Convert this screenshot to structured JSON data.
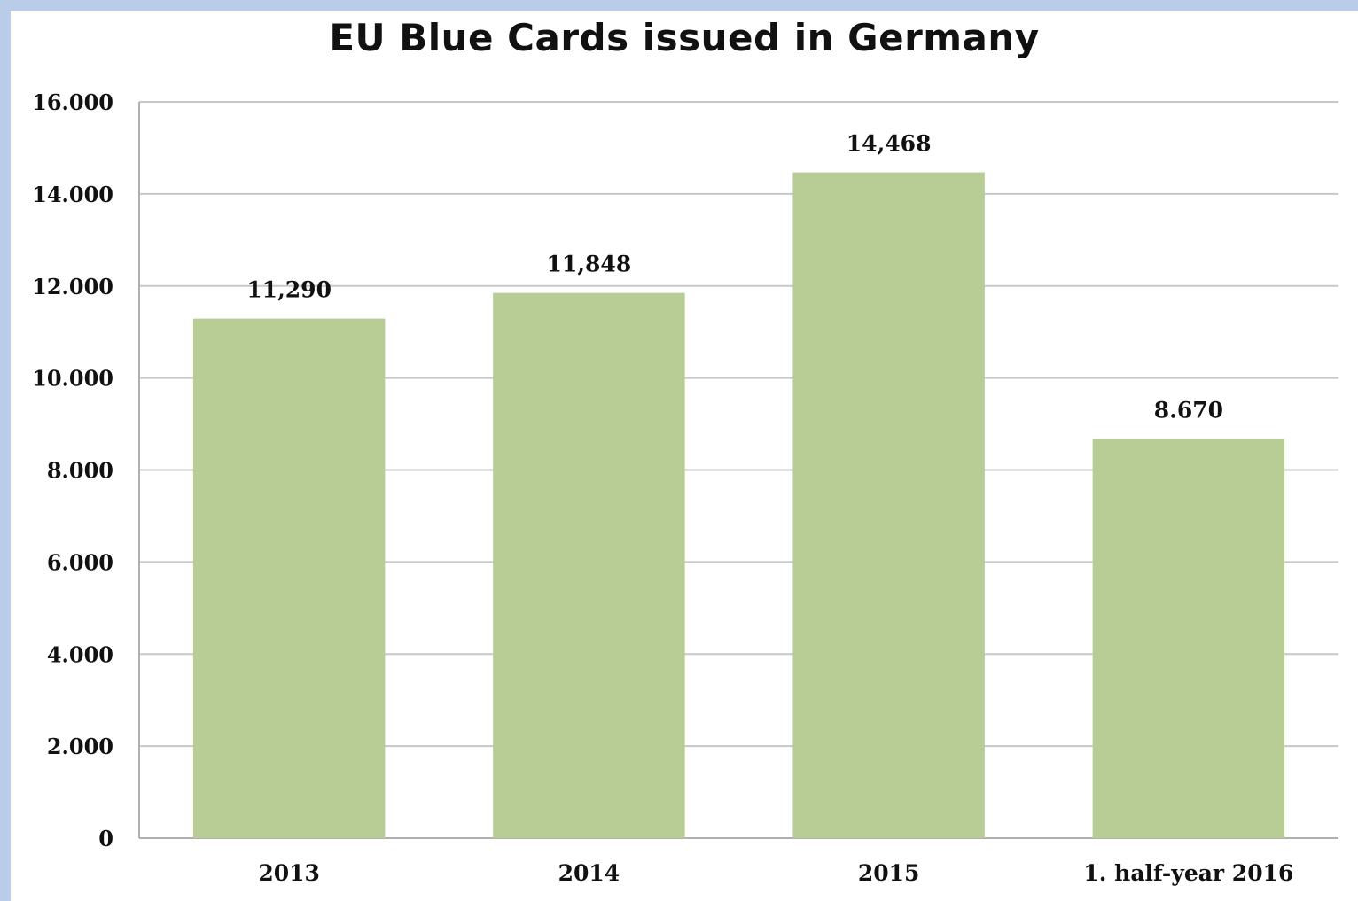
{
  "chart_data": {
    "type": "bar",
    "title": "EU Blue Cards issued in Germany",
    "xlabel": "",
    "ylabel": "",
    "categories": [
      "2013",
      "2014",
      "2015",
      "1. half-year 2016"
    ],
    "values": [
      11290,
      11848,
      14468,
      8670
    ],
    "data_labels": [
      "11,290",
      "11,848",
      "14,468",
      "8.670"
    ],
    "ylim": [
      0,
      16000
    ],
    "yticks": [
      0,
      2000,
      4000,
      6000,
      8000,
      10000,
      12000,
      14000,
      16000
    ],
    "ytick_labels": [
      "0",
      "2.000",
      "4.000",
      "6.000",
      "8.000",
      "10.000",
      "12.000",
      "14.000",
      "16.000"
    ],
    "grid": true,
    "legend": "none",
    "colors": {
      "bar": "#b8cd95",
      "grid": "#c8c8c8",
      "frame": "#b9cde9"
    }
  }
}
